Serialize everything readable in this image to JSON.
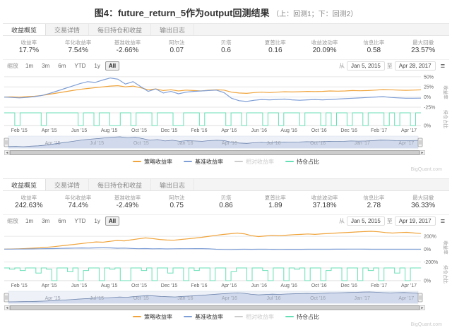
{
  "page": {
    "title": "图4：future_return_5作为output回测结果",
    "title_suffix": "（上：回测1；下：回测2）",
    "watermark": "BigQuant.com"
  },
  "panels": [
    {
      "tabs": [
        {
          "label": "收益概览",
          "active": true
        },
        {
          "label": "交易详情",
          "active": false
        },
        {
          "label": "每日持仓和收益",
          "active": false
        },
        {
          "label": "输出日志",
          "active": false
        }
      ],
      "stats": [
        {
          "label": "收益率",
          "value": "17.7%"
        },
        {
          "label": "年化收益率",
          "value": "7.54%"
        },
        {
          "label": "基准收益率",
          "value": "-2.66%"
        },
        {
          "label": "阿尔法",
          "value": "0.07"
        },
        {
          "label": "贝塔",
          "value": "0.6"
        },
        {
          "label": "夏普比率",
          "value": "0.16"
        },
        {
          "label": "收益波动率",
          "value": "20.09%"
        },
        {
          "label": "信息比率",
          "value": "0.58"
        },
        {
          "label": "最大回撤",
          "value": "23.57%"
        }
      ],
      "toolbar": {
        "zoom_label": "缩放",
        "ranges": [
          "1m",
          "3m",
          "6m",
          "YTD",
          "1y",
          "All"
        ],
        "active_range": "All",
        "from_label": "从",
        "to_label": "至",
        "from": "Jan 5, 2015",
        "to": "Apr 28, 2017"
      },
      "legend": [
        {
          "label": "策略收益率",
          "color": "#f0a43b",
          "disabled": false
        },
        {
          "label": "基准收益率",
          "color": "#7e9ed6",
          "disabled": false
        },
        {
          "label": "相对收益率",
          "color": "#cccccc",
          "disabled": true
        },
        {
          "label": "持仓占比",
          "color": "#67dfb5",
          "disabled": false
        }
      ],
      "chart_data": {
        "type": "line",
        "y_title": "收益率",
        "y2_title": "持仓占比",
        "y_ticks": [
          50,
          25,
          0,
          -25
        ],
        "y_min": -32,
        "y_max": 55,
        "y2_tick_label": "0%",
        "x_labels": [
          "Feb '15",
          "Apr '15",
          "Jun '15",
          "Aug '15",
          "Oct '15",
          "Dec '15",
          "Feb '16",
          "Apr '16",
          "Jun '16",
          "Aug '16",
          "Oct '16",
          "Dec '16",
          "Feb '17",
          "Apr '17"
        ],
        "nav_labels": [
          "Apr '15",
          "Jul '15",
          "Oct '15",
          "Jan '16",
          "Apr '16",
          "Jul '16",
          "Oct '16",
          "Jan '17",
          "Apr '17"
        ],
        "series": [
          {
            "name": "策略收益率",
            "axis": "main",
            "color": "#f0a43b",
            "values": [
              0,
              0.5,
              -0.5,
              1,
              2,
              4,
              7,
              10,
              13,
              16,
              19,
              21,
              23,
              25,
              27,
              28,
              25,
              27,
              23,
              18,
              20,
              16,
              18,
              15,
              17,
              16,
              15,
              17,
              18,
              17,
              12,
              10,
              9,
              11,
              12,
              11,
              12,
              13,
              12.5,
              13,
              14,
              13.5,
              14,
              15,
              14.5,
              15,
              16,
              15.5,
              16,
              17,
              18.5,
              18,
              17,
              16.5,
              17,
              17.7
            ]
          },
          {
            "name": "基准收益率",
            "axis": "main",
            "color": "#7e9ed6",
            "values": [
              0,
              -1,
              -2,
              -1,
              1,
              4,
              9,
              15,
              21,
              27,
              33,
              38,
              36,
              42,
              47,
              44,
              32,
              38,
              26,
              14,
              20,
              10,
              14,
              8,
              12,
              14,
              15,
              16,
              17,
              11,
              -3,
              -9,
              -11,
              -8,
              -6,
              -7,
              -6,
              -5,
              -7,
              -8,
              -7,
              -6,
              -7,
              -6,
              -5,
              -4,
              -3,
              -2,
              -1,
              0,
              1,
              -1,
              -2,
              -3,
              -3,
              -2.7
            ]
          },
          {
            "name": "持仓占比",
            "axis": "position",
            "step": true,
            "color": "#67dfb5",
            "values": [
              100,
              100,
              0,
              100,
              100,
              100,
              100,
              0,
              100,
              100,
              100,
              100,
              100,
              100,
              0,
              100,
              100,
              0,
              100,
              100,
              0,
              0,
              100,
              100,
              0,
              100,
              100,
              100,
              0,
              100,
              100,
              100,
              0,
              0,
              100,
              100,
              100,
              0,
              100,
              100,
              100,
              100,
              0,
              100,
              100,
              0,
              100,
              100,
              100,
              0,
              100,
              100,
              0,
              100,
              100,
              100,
              0,
              100,
              100,
              100,
              0,
              100,
              0,
              100,
              100,
              0,
              100,
              100,
              0,
              100,
              100,
              100,
              0,
              100,
              0,
              100,
              100,
              0,
              100,
              100
            ]
          }
        ],
        "navigator": {
          "fill": "#cdd7eb",
          "line": "#6b82ab"
        }
      }
    },
    {
      "tabs": [
        {
          "label": "收益概览",
          "active": true
        },
        {
          "label": "交易详情",
          "active": false
        },
        {
          "label": "每日持仓和收益",
          "active": false
        },
        {
          "label": "输出日志",
          "active": false
        }
      ],
      "stats": [
        {
          "label": "收益率",
          "value": "242.63%"
        },
        {
          "label": "年化收益率",
          "value": "74.4%"
        },
        {
          "label": "基准收益率",
          "value": "-2.49%"
        },
        {
          "label": "阿尔法",
          "value": "0.75"
        },
        {
          "label": "贝塔",
          "value": "0.86"
        },
        {
          "label": "夏普比率",
          "value": "1.89"
        },
        {
          "label": "收益波动率",
          "value": "37.18%"
        },
        {
          "label": "信息比率",
          "value": "2.78"
        },
        {
          "label": "最大回撤",
          "value": "36.33%"
        }
      ],
      "toolbar": {
        "zoom_label": "缩放",
        "ranges": [
          "1m",
          "3m",
          "6m",
          "YTD",
          "1y",
          "All"
        ],
        "active_range": "All",
        "from_label": "从",
        "to_label": "至",
        "from": "Jan 5, 2015",
        "to": "Apr 19, 2017"
      },
      "legend": [
        {
          "label": "策略收益率",
          "color": "#f0a43b",
          "disabled": false
        },
        {
          "label": "基准收益率",
          "color": "#7e9ed6",
          "disabled": false
        },
        {
          "label": "相对收益率",
          "color": "#cccccc",
          "disabled": true
        },
        {
          "label": "持仓占比",
          "color": "#67dfb5",
          "disabled": false
        }
      ],
      "chart_data": {
        "type": "line",
        "y_title": "收益率",
        "y2_title": "持仓占比",
        "y_ticks": [
          200,
          0,
          -200
        ],
        "y_min": -250,
        "y_max": 300,
        "y2_tick_label": "0%",
        "x_labels": [
          "Feb '15",
          "Apr '15",
          "Jun '15",
          "Aug '15",
          "Oct '15",
          "Dec '15",
          "Feb '16",
          "Apr '16",
          "Jun '16",
          "Aug '16",
          "Oct '16",
          "Dec '16",
          "Feb '17",
          "Apr '17"
        ],
        "nav_labels": [
          "Apr '15",
          "Jul '15",
          "Oct '15",
          "Jan '16",
          "Apr '16",
          "Jul '16",
          "Oct '16",
          "Jan '17",
          "Apr '17"
        ],
        "series": [
          {
            "name": "策略收益率",
            "axis": "main",
            "color": "#f0a43b",
            "values": [
              0,
              2,
              5,
              9,
              14,
              20,
              28,
              38,
              50,
              62,
              75,
              88,
              100,
              112,
              108,
              122,
              135,
              128,
              145,
              160,
              175,
              165,
              150,
              142,
              138,
              150,
              160,
              172,
              185,
              200,
              215,
              228,
              240,
              250,
              238,
              210,
              195,
              205,
              215,
              208,
              218,
              225,
              230,
              236,
              230,
              238,
              244,
              250,
              256,
              262,
              268,
              274,
              278,
              270,
              258,
              250,
              258,
              262,
              252,
              242.6
            ]
          },
          {
            "name": "基准收益率",
            "axis": "main",
            "color": "#7e9ed6",
            "values": [
              0,
              0,
              1,
              2,
              3,
              5,
              7,
              9,
              12,
              14,
              16,
              18,
              16,
              19,
              21,
              19,
              14,
              16,
              11,
              6,
              8,
              4,
              6,
              3,
              5,
              6,
              6,
              7,
              7,
              4,
              -2,
              -5,
              -6,
              -4,
              -3,
              -4,
              -3,
              -3,
              -4,
              -5,
              -4,
              -4,
              -4,
              -3,
              -3,
              -2,
              -2,
              -1,
              -1,
              0,
              0,
              -1,
              -2,
              -2,
              -3,
              -2,
              -2,
              -3,
              -3,
              -2.5
            ]
          },
          {
            "name": "持仓占比",
            "axis": "position",
            "step": true,
            "color": "#67dfb5",
            "values": [
              100,
              90,
              100,
              80,
              100,
              100,
              60,
              100,
              90,
              0,
              100,
              100,
              70,
              100,
              0,
              80,
              100,
              100,
              0,
              100,
              90,
              100,
              0,
              0,
              100,
              100,
              80,
              100,
              0,
              100,
              100,
              60,
              100,
              100,
              0,
              100,
              80,
              100,
              100,
              0,
              100,
              100,
              0,
              70,
              100,
              100,
              0,
              100,
              100,
              80,
              0,
              100,
              100,
              0,
              100,
              90,
              100,
              0,
              100,
              100,
              0,
              80,
              100,
              100,
              0,
              100,
              100,
              0,
              100,
              80,
              100,
              0,
              100,
              100,
              60,
              100,
              0,
              100,
              100,
              100
            ]
          }
        ],
        "navigator": {
          "fill": "#cdd7eb",
          "line": "#6b82ab"
        }
      }
    }
  ]
}
